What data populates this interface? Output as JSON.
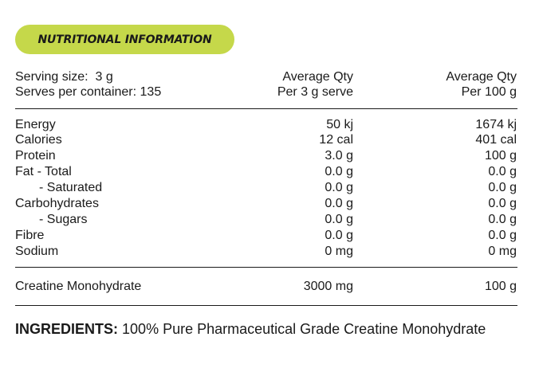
{
  "header": {
    "title": "NUTRITIONAL INFORMATION"
  },
  "serving": {
    "size_label": "Serving size:  3 g",
    "per_container_label": "Serves per container: 135",
    "col1_line1": "Average Qty",
    "col1_line2": "Per 3 g serve",
    "col2_line1": "Average Qty",
    "col2_line2": "Per 100 g"
  },
  "nutrients": [
    {
      "name": "Energy",
      "per_serve": "50 kj",
      "per_100g": "1674 kj"
    },
    {
      "name": "Calories",
      "per_serve": "12 cal",
      "per_100g": "401 cal"
    },
    {
      "name": "Protein",
      "per_serve": "3.0 g",
      "per_100g": "100 g"
    },
    {
      "name": "Fat - Total",
      "per_serve": "0.0 g",
      "per_100g": "0.0 g"
    },
    {
      "name": "- Saturated",
      "per_serve": "0.0 g",
      "per_100g": "0.0 g"
    },
    {
      "name": "Carbohydrates",
      "per_serve": "0.0 g",
      "per_100g": "0.0 g"
    },
    {
      "name": "- Sugars",
      "per_serve": "0.0 g",
      "per_100g": "0.0 g"
    },
    {
      "name": "Fibre",
      "per_serve": "0.0 g",
      "per_100g": "0.0 g"
    },
    {
      "name": "Sodium",
      "per_serve": "0 mg",
      "per_100g": "0 mg"
    }
  ],
  "active": {
    "name": "Creatine Monohydrate",
    "per_serve": "3000 mg",
    "per_100g": "100 g"
  },
  "ingredients": {
    "label": "INGREDIENTS:",
    "text": "100% Pure Pharmaceutical Grade Creatine Monohydrate"
  }
}
